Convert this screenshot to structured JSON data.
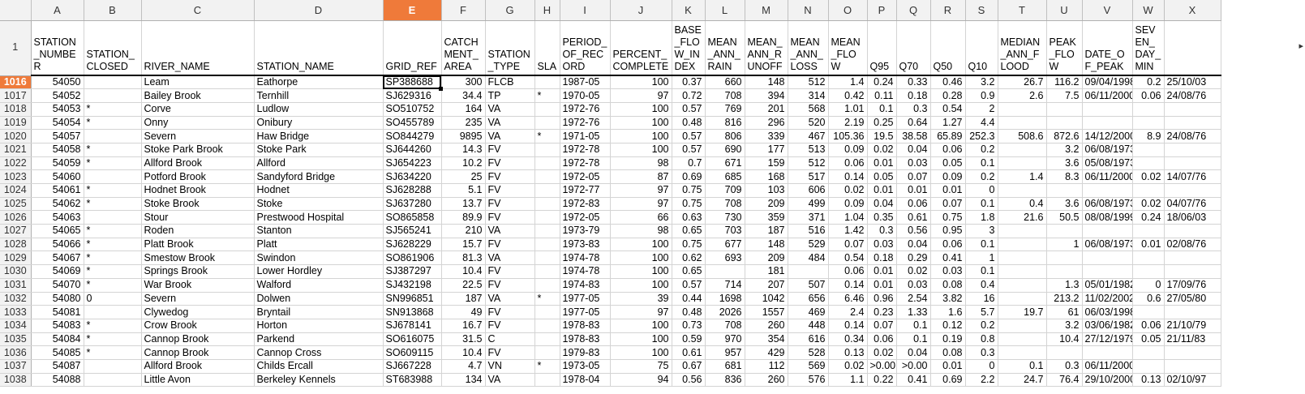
{
  "columns": [
    "A",
    "B",
    "C",
    "D",
    "E",
    "F",
    "G",
    "H",
    "I",
    "J",
    "K",
    "L",
    "M",
    "N",
    "O",
    "P",
    "Q",
    "R",
    "S",
    "T",
    "U",
    "V",
    "W",
    "X"
  ],
  "selected_column": "E",
  "selected_row": "1016",
  "header_row_number": "1",
  "header": [
    "STATION_NUMBER",
    "STATION_CLOSED",
    "RIVER_NAME",
    "STATION_NAME",
    "GRID_REF",
    "CATCHMENT_AREA",
    "STATION_TYPE",
    "SLA",
    "PERIOD_OF_RECORD",
    "PERCENT_COMPLETE",
    "BASE_FLOW_INDEX",
    "MEAN_ANN_RAIN",
    "MEAN_ANN_RUNOFF",
    "MEAN_ANN_LOSS",
    "MEAN_FLOW",
    "Q95",
    "Q70",
    "Q50",
    "Q10",
    "MEDIAN_ANN_FLOOD",
    "PEAK_FLOW",
    "DATE_OF_PEAK",
    "SEVEN_DAY_MIN",
    ""
  ],
  "rows": [
    {
      "n": "1016",
      "c": [
        "54050",
        "",
        "Leam",
        "Eathorpe",
        "SP388688",
        "300",
        "FLCB",
        "",
        "1987-05",
        "100",
        "0.37",
        "660",
        "148",
        "512",
        "1.4",
        "0.24",
        "0.33",
        "0.46",
        "3.2",
        "26.7",
        "116.2",
        "09/04/1998",
        "0.2",
        "25/10/03"
      ]
    },
    {
      "n": "1017",
      "c": [
        "54052",
        "",
        "Bailey Brook",
        "Ternhill",
        "SJ629316",
        "34.4",
        "TP",
        "*",
        "1970-05",
        "97",
        "0.72",
        "708",
        "394",
        "314",
        "0.42",
        "0.11",
        "0.18",
        "0.28",
        "0.9",
        "2.6",
        "7.5",
        "06/11/2000",
        "0.06",
        "24/08/76"
      ]
    },
    {
      "n": "1018",
      "c": [
        "54053",
        "*",
        "Corve",
        "Ludlow",
        "SO510752",
        "164",
        "VA",
        "",
        "1972-76",
        "100",
        "0.57",
        "769",
        "201",
        "568",
        "1.01",
        "0.1",
        "0.3",
        "0.54",
        "2",
        "",
        "",
        "",
        "",
        ""
      ]
    },
    {
      "n": "1019",
      "c": [
        "54054",
        "*",
        "Onny",
        "Onibury",
        "SO455789",
        "235",
        "VA",
        "",
        "1972-76",
        "100",
        "0.48",
        "816",
        "296",
        "520",
        "2.19",
        "0.25",
        "0.64",
        "1.27",
        "4.4",
        "",
        "",
        "",
        "",
        ""
      ]
    },
    {
      "n": "1020",
      "c": [
        "54057",
        "",
        "Severn",
        "Haw Bridge",
        "SO844279",
        "9895",
        "VA",
        "*",
        "1971-05",
        "100",
        "0.57",
        "806",
        "339",
        "467",
        "105.36",
        "19.5",
        "38.58",
        "65.89",
        "252.3",
        "508.6",
        "872.6",
        "14/12/2000",
        "8.9",
        "24/08/76"
      ]
    },
    {
      "n": "1021",
      "c": [
        "54058",
        "*",
        "Stoke Park Brook",
        "Stoke Park",
        "SJ644260",
        "14.3",
        "FV",
        "",
        "1972-78",
        "100",
        "0.57",
        "690",
        "177",
        "513",
        "0.09",
        "0.02",
        "0.04",
        "0.06",
        "0.2",
        "",
        "3.2",
        "06/08/1973",
        "",
        ""
      ]
    },
    {
      "n": "1022",
      "c": [
        "54059",
        "*",
        "Allford Brook",
        "Allford",
        "SJ654223",
        "10.2",
        "FV",
        "",
        "1972-78",
        "98",
        "0.7",
        "671",
        "159",
        "512",
        "0.06",
        "0.01",
        "0.03",
        "0.05",
        "0.1",
        "",
        "3.6",
        "05/08/1973",
        "",
        ""
      ]
    },
    {
      "n": "1023",
      "c": [
        "54060",
        "",
        "Potford Brook",
        "Sandyford Bridge",
        "SJ634220",
        "25",
        "FV",
        "",
        "1972-05",
        "87",
        "0.69",
        "685",
        "168",
        "517",
        "0.14",
        "0.05",
        "0.07",
        "0.09",
        "0.2",
        "1.4",
        "8.3",
        "06/11/2000",
        "0.02",
        "14/07/76"
      ]
    },
    {
      "n": "1024",
      "c": [
        "54061",
        "*",
        "Hodnet Brook",
        "Hodnet",
        "SJ628288",
        "5.1",
        "FV",
        "",
        "1972-77",
        "97",
        "0.75",
        "709",
        "103",
        "606",
        "0.02",
        "0.01",
        "0.01",
        "0.01",
        "0",
        "",
        "",
        "",
        "",
        ""
      ]
    },
    {
      "n": "1025",
      "c": [
        "54062",
        "*",
        "Stoke Brook",
        "Stoke",
        "SJ637280",
        "13.7",
        "FV",
        "",
        "1972-83",
        "97",
        "0.75",
        "708",
        "209",
        "499",
        "0.09",
        "0.04",
        "0.06",
        "0.07",
        "0.1",
        "0.4",
        "3.6",
        "06/08/1973",
        "0.02",
        "04/07/76"
      ]
    },
    {
      "n": "1026",
      "c": [
        "54063",
        "",
        "Stour",
        "Prestwood Hospital",
        "SO865858",
        "89.9",
        "FV",
        "",
        "1972-05",
        "66",
        "0.63",
        "730",
        "359",
        "371",
        "1.04",
        "0.35",
        "0.61",
        "0.75",
        "1.8",
        "21.6",
        "50.5",
        "08/08/1999",
        "0.24",
        "18/06/03"
      ]
    },
    {
      "n": "1027",
      "c": [
        "54065",
        "*",
        "Roden",
        "Stanton",
        "SJ565241",
        "210",
        "VA",
        "",
        "1973-79",
        "98",
        "0.65",
        "703",
        "187",
        "516",
        "1.42",
        "0.3",
        "0.56",
        "0.95",
        "3",
        "",
        "",
        "",
        "",
        ""
      ]
    },
    {
      "n": "1028",
      "c": [
        "54066",
        "*",
        "Platt Brook",
        "Platt",
        "SJ628229",
        "15.7",
        "FV",
        "",
        "1973-83",
        "100",
        "0.75",
        "677",
        "148",
        "529",
        "0.07",
        "0.03",
        "0.04",
        "0.06",
        "0.1",
        "",
        "1",
        "06/08/1973",
        "0.01",
        "02/08/76"
      ]
    },
    {
      "n": "1029",
      "c": [
        "54067",
        "*",
        "Smestow Brook",
        "Swindon",
        "SO861906",
        "81.3",
        "VA",
        "",
        "1974-78",
        "100",
        "0.62",
        "693",
        "209",
        "484",
        "0.54",
        "0.18",
        "0.29",
        "0.41",
        "1",
        "",
        "",
        "",
        "",
        ""
      ]
    },
    {
      "n": "1030",
      "c": [
        "54069",
        "*",
        "Springs Brook",
        "Lower Hordley",
        "SJ387297",
        "10.4",
        "FV",
        "",
        "1974-78",
        "100",
        "0.65",
        "",
        "181",
        "",
        "0.06",
        "0.01",
        "0.02",
        "0.03",
        "0.1",
        "",
        "",
        "",
        "",
        ""
      ]
    },
    {
      "n": "1031",
      "c": [
        "54070",
        "*",
        "War Brook",
        "Walford",
        "SJ432198",
        "22.5",
        "FV",
        "",
        "1974-83",
        "100",
        "0.57",
        "714",
        "207",
        "507",
        "0.14",
        "0.01",
        "0.03",
        "0.08",
        "0.4",
        "",
        "1.3",
        "05/01/1982",
        "0",
        "17/09/76"
      ]
    },
    {
      "n": "1032",
      "c": [
        "54080",
        "0",
        "Severn",
        "Dolwen",
        "SN996851",
        "187",
        "VA",
        "*",
        "1977-05",
        "39",
        "0.44",
        "1698",
        "1042",
        "656",
        "6.46",
        "0.96",
        "2.54",
        "3.82",
        "16",
        "",
        "213.2",
        "11/02/2002",
        "0.6",
        "27/05/80"
      ]
    },
    {
      "n": "1033",
      "c": [
        "54081",
        "",
        "Clywedog",
        "Bryntail",
        "SN913868",
        "49",
        "FV",
        "",
        "1977-05",
        "97",
        "0.48",
        "2026",
        "1557",
        "469",
        "2.4",
        "0.23",
        "1.33",
        "1.6",
        "5.7",
        "19.7",
        "61",
        "06/03/1998",
        "",
        ""
      ]
    },
    {
      "n": "1034",
      "c": [
        "54083",
        "*",
        "Crow Brook",
        "Horton",
        "SJ678141",
        "16.7",
        "FV",
        "",
        "1978-83",
        "100",
        "0.73",
        "708",
        "260",
        "448",
        "0.14",
        "0.07",
        "0.1",
        "0.12",
        "0.2",
        "",
        "3.2",
        "03/06/1982",
        "0.06",
        "21/10/79"
      ]
    },
    {
      "n": "1035",
      "c": [
        "54084",
        "*",
        "Cannop Brook",
        "Parkend",
        "SO616075",
        "31.5",
        "C",
        "",
        "1978-83",
        "100",
        "0.59",
        "970",
        "354",
        "616",
        "0.34",
        "0.06",
        "0.1",
        "0.19",
        "0.8",
        "",
        "10.4",
        "27/12/1979",
        "0.05",
        "21/11/83"
      ]
    },
    {
      "n": "1036",
      "c": [
        "54085",
        "*",
        "Cannop Brook",
        "Cannop Cross",
        "SO609115",
        "10.4",
        "FV",
        "",
        "1979-83",
        "100",
        "0.61",
        "957",
        "429",
        "528",
        "0.13",
        "0.02",
        "0.04",
        "0.08",
        "0.3",
        "",
        "",
        "",
        "",
        ""
      ]
    },
    {
      "n": "1037",
      "c": [
        "54087",
        "",
        "Allford Brook",
        "Childs Ercall",
        "SJ667228",
        "4.7",
        "VN",
        "*",
        "1973-05",
        "75",
        "0.67",
        "681",
        "112",
        "569",
        "0.02",
        ">0.00",
        ">0.00",
        "0.01",
        "0",
        "0.1",
        "0.3",
        "06/11/2000",
        "",
        ""
      ]
    },
    {
      "n": "1038",
      "c": [
        "54088",
        "",
        "Little Avon",
        "Berkeley Kennels",
        "ST683988",
        "134",
        "VA",
        "",
        "1978-04",
        "94",
        "0.56",
        "836",
        "260",
        "576",
        "1.1",
        "0.22",
        "0.41",
        "0.69",
        "2.2",
        "24.7",
        "76.4",
        "29/10/2000",
        "0.13",
        "02/10/97"
      ]
    }
  ]
}
